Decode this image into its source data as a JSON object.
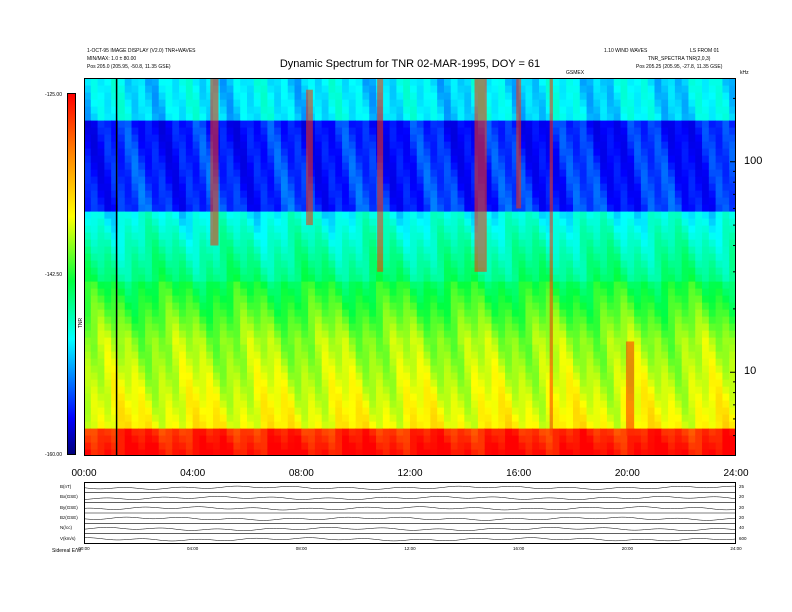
{
  "header": {
    "left_line1": "1-OCT-95 IMAGE DISPLAY (V2.0) TNR+WAVES",
    "left_line2": "MIN/MAX: 1.0 ± 80.00",
    "left_line3": "Pos   205.0 (205.95, -50.8, 11.35 GSE)",
    "right_line1": "1.10 WIND WAVES",
    "right_line2": "TNR_SPECTRA  TNR(2,0,3)",
    "right_line3": "Pos   205.25 (205.95, -27.8, 11.35 GSE)",
    "right_corner": "LS FROM 01",
    "center_small": "GSMEX",
    "khz_label": "kHz"
  },
  "title": "Dynamic Spectrum for TNR 02-MAR-1995, DOY = 61",
  "colorbar": {
    "ticks": [
      "-125.00",
      "-142.50",
      "-160.00"
    ],
    "label": "TNR"
  },
  "chart_data": {
    "type": "heatmap",
    "title": "Dynamic Spectrum for TNR 02-MAR-1995, DOY = 61",
    "x_ticks": [
      "00:00",
      "04:00",
      "08:00",
      "12:00",
      "16:00",
      "20:00",
      "24:00"
    ],
    "x_range_hours": [
      0,
      24
    ],
    "y_scale": "log",
    "y_unit": "kHz",
    "y_range_khz": [
      4,
      250
    ],
    "y_ticks": [
      10,
      100
    ],
    "colorbar_range": [
      -160.0,
      -125.0
    ],
    "colorbar_ticks": [
      -125.0,
      -142.5,
      -160.0
    ],
    "colorscale": [
      "#00007a",
      "#0000ff",
      "#00ffff",
      "#00ff40",
      "#ffff00",
      "#ff8000",
      "#ff0000"
    ],
    "marker_line_hour": 1.2,
    "bursts": [
      {
        "t": 4.8,
        "f_low": 40,
        "f_high": 250,
        "width": 0.3
      },
      {
        "t": 8.3,
        "f_low": 50,
        "f_high": 220,
        "width": 0.25
      },
      {
        "t": 10.9,
        "f_low": 30,
        "f_high": 250,
        "width": 0.22
      },
      {
        "t": 14.6,
        "f_low": 30,
        "f_high": 250,
        "width": 0.45
      },
      {
        "t": 16.0,
        "f_low": 60,
        "f_high": 250,
        "width": 0.18
      },
      {
        "t": 17.2,
        "f_low": 5,
        "f_high": 250,
        "width": 0.12
      },
      {
        "t": 20.1,
        "f_low": 5,
        "f_high": 14,
        "width": 0.3
      }
    ]
  },
  "panels": {
    "labels": [
      "B(nT)",
      "Bx(GSE)",
      "By(GSE)",
      "Bz(GSE)",
      "N(/cc)",
      "V(km/s)"
    ],
    "ranges": [
      "25",
      "20",
      "20",
      "20",
      "40",
      "600"
    ],
    "ticks": [
      "00:00",
      "04:00",
      "08:00",
      "12:00",
      "16:00",
      "20:00",
      "24:00"
    ],
    "footer_left": "Sidereal   E/W"
  }
}
